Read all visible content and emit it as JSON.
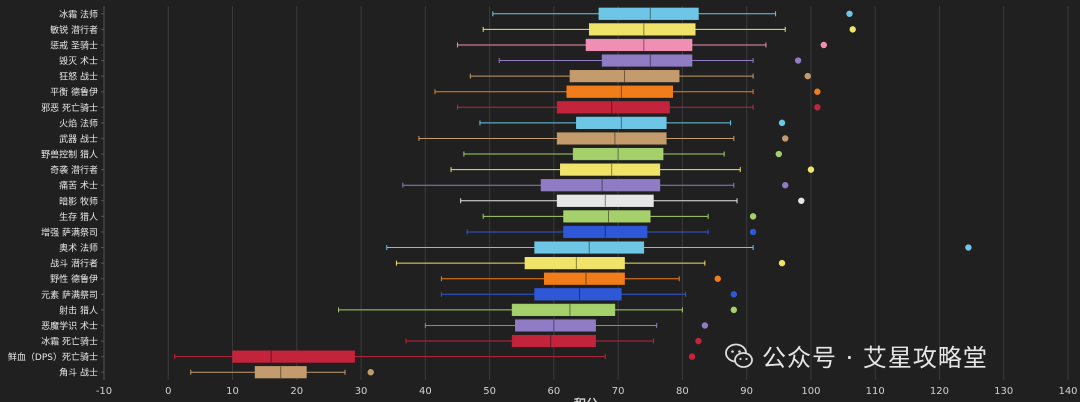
{
  "chart_data": {
    "type": "box",
    "orientation": "horizontal",
    "xlabel": "积分",
    "xlim": [
      -10,
      140
    ],
    "xticks": [
      -10,
      0,
      10,
      20,
      30,
      40,
      50,
      60,
      70,
      80,
      90,
      100,
      110,
      120,
      130,
      140
    ],
    "grid": "vertical",
    "legend": "none",
    "series": [
      {
        "name": "冰霜 法师",
        "color": "#6ec6e6",
        "whisker_low": 50.5,
        "q1": 67,
        "median": 75,
        "q3": 82.5,
        "whisker_high": 94.5,
        "outliers": [
          106
        ]
      },
      {
        "name": "敏锐 潜行者",
        "color": "#f0e36a",
        "whisker_low": 49,
        "q1": 65.5,
        "median": 74,
        "q3": 82,
        "whisker_high": 96,
        "outliers": [
          106.5
        ]
      },
      {
        "name": "惩戒 圣骑士",
        "color": "#f08fb4",
        "whisker_low": 45,
        "q1": 65,
        "median": 74,
        "q3": 81.5,
        "whisker_high": 93,
        "outliers": [
          102
        ]
      },
      {
        "name": "毁灭 术士",
        "color": "#8f7cc4",
        "whisker_low": 51.5,
        "q1": 67.5,
        "median": 75,
        "q3": 81.5,
        "whisker_high": 91,
        "outliers": [
          98
        ]
      },
      {
        "name": "狂怒 战士",
        "color": "#c39b6d",
        "whisker_low": 47,
        "q1": 62.5,
        "median": 71,
        "q3": 79.5,
        "whisker_high": 91,
        "outliers": [
          99.5
        ]
      },
      {
        "name": "平衡 德鲁伊",
        "color": "#f07d1a",
        "whisker_low": 41.5,
        "q1": 62,
        "median": 70.5,
        "q3": 78.5,
        "whisker_high": 91,
        "outliers": [
          101
        ]
      },
      {
        "name": "邪恶 死亡骑士",
        "color": "#c4233c",
        "whisker_low": 45,
        "q1": 60.5,
        "median": 69,
        "q3": 78,
        "whisker_high": 91,
        "outliers": [
          101
        ]
      },
      {
        "name": "火焰 法师",
        "color": "#6ec6e6",
        "whisker_low": 48.5,
        "q1": 63.5,
        "median": 70.5,
        "q3": 77.5,
        "whisker_high": 87.5,
        "outliers": [
          95.5
        ]
      },
      {
        "name": "武器 战士",
        "color": "#c39b6d",
        "whisker_low": 39,
        "q1": 60.5,
        "median": 69.5,
        "q3": 77.5,
        "whisker_high": 88,
        "outliers": [
          96
        ]
      },
      {
        "name": "野兽控制 猎人",
        "color": "#a5d06b",
        "whisker_low": 46,
        "q1": 63,
        "median": 70,
        "q3": 77,
        "whisker_high": 86.5,
        "outliers": [
          95
        ]
      },
      {
        "name": "奇袭 潜行者",
        "color": "#f0e36a",
        "whisker_low": 44,
        "q1": 61,
        "median": 69,
        "q3": 76.5,
        "whisker_high": 89,
        "outliers": [
          100
        ]
      },
      {
        "name": "痛苦 术士",
        "color": "#8f7cc4",
        "whisker_low": 36.5,
        "q1": 58,
        "median": 67.5,
        "q3": 76.5,
        "whisker_high": 88,
        "outliers": [
          96
        ]
      },
      {
        "name": "暗影 牧师",
        "color": "#e6e6e6",
        "whisker_low": 45.5,
        "q1": 60.5,
        "median": 68,
        "q3": 75.5,
        "whisker_high": 88.5,
        "outliers": [
          98.5
        ]
      },
      {
        "name": "生存 猎人",
        "color": "#a5d06b",
        "whisker_low": 49,
        "q1": 61.5,
        "median": 68.5,
        "q3": 75,
        "whisker_high": 84,
        "outliers": [
          91
        ]
      },
      {
        "name": "增强 萨满祭司",
        "color": "#2f58d8",
        "whisker_low": 46.5,
        "q1": 61.5,
        "median": 68,
        "q3": 74.5,
        "whisker_high": 84,
        "outliers": [
          91
        ]
      },
      {
        "name": "奥术 法师",
        "color": "#6ec6e6",
        "whisker_low": 34,
        "q1": 57,
        "median": 65.5,
        "q3": 74,
        "whisker_high": 91,
        "outliers": [
          124.5
        ]
      },
      {
        "name": "战斗 潜行者",
        "color": "#f0e36a",
        "whisker_low": 35.5,
        "q1": 55.5,
        "median": 63.5,
        "q3": 71,
        "whisker_high": 83.5,
        "outliers": [
          95.5
        ]
      },
      {
        "name": "野性 德鲁伊",
        "color": "#f07d1a",
        "whisker_low": 42.5,
        "q1": 58.5,
        "median": 65,
        "q3": 71,
        "whisker_high": 79.5,
        "outliers": [
          85.5
        ]
      },
      {
        "name": "元素 萨满祭司",
        "color": "#2f58d8",
        "whisker_low": 42.5,
        "q1": 57,
        "median": 64,
        "q3": 70.5,
        "whisker_high": 80.5,
        "outliers": [
          88
        ]
      },
      {
        "name": "射击 猎人",
        "color": "#a5d06b",
        "whisker_low": 26.5,
        "q1": 53.5,
        "median": 62.5,
        "q3": 69.5,
        "whisker_high": 80,
        "outliers": [
          88
        ]
      },
      {
        "name": "恶魔学识 术士",
        "color": "#8f7cc4",
        "whisker_low": 40,
        "q1": 54,
        "median": 60,
        "q3": 66.5,
        "whisker_high": 76,
        "outliers": [
          83.5
        ]
      },
      {
        "name": "冰霜 死亡骑士",
        "color": "#c4233c",
        "whisker_low": 37,
        "q1": 53.5,
        "median": 59.5,
        "q3": 66.5,
        "whisker_high": 75.5,
        "outliers": [
          82.5
        ]
      },
      {
        "name": "鲜血（DPS）死亡骑士",
        "color": "#c4233c",
        "whisker_low": 1,
        "q1": 10,
        "median": 16,
        "q3": 29,
        "whisker_high": 68,
        "outliers": [
          81.5
        ]
      },
      {
        "name": "角斗 战士",
        "color": "#c39b6d",
        "whisker_low": 3.5,
        "q1": 13.5,
        "median": 17.5,
        "q3": 21.5,
        "whisker_high": 27.5,
        "outliers": [
          31.5
        ]
      }
    ]
  },
  "watermark": {
    "text": "公众号 · 艾星攻略堂"
  }
}
